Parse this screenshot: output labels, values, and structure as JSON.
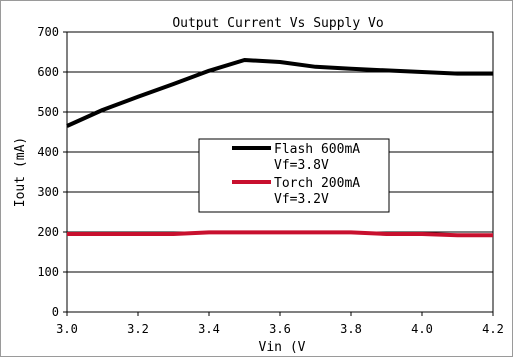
{
  "chart_data": {
    "type": "line",
    "title": "Output Current Vs Supply Vo",
    "xlabel": "Vin (V",
    "ylabel": "Iout (mA)",
    "xlim": [
      3.0,
      4.2
    ],
    "ylim": [
      0,
      700
    ],
    "x_ticks": [
      "3.0",
      "3.2",
      "3.4",
      "3.6",
      "3.8",
      "4.0",
      "4.2"
    ],
    "y_ticks": [
      "0",
      "100",
      "200",
      "300",
      "400",
      "500",
      "600",
      "700"
    ],
    "grid": "horizontal",
    "legend_position": "center",
    "series": [
      {
        "name": "Flash 600mA",
        "name2": "Vf=3.8V",
        "color": "#000000",
        "x": [
          3.0,
          3.1,
          3.2,
          3.3,
          3.4,
          3.5,
          3.6,
          3.7,
          3.8,
          3.9,
          4.0,
          4.1,
          4.2
        ],
        "y": [
          465,
          505,
          538,
          570,
          603,
          630,
          625,
          613,
          608,
          604,
          600,
          596,
          596
        ]
      },
      {
        "name": "Torch 200mA",
        "name2": "Vf=3.2V",
        "color": "#c8102e",
        "x": [
          3.0,
          3.1,
          3.2,
          3.3,
          3.4,
          3.5,
          3.6,
          3.7,
          3.8,
          3.9,
          4.0,
          4.1,
          4.2
        ],
        "y": [
          195,
          195,
          195,
          195,
          199,
          199,
          199,
          199,
          199,
          195,
          195,
          192,
          192
        ]
      }
    ]
  }
}
